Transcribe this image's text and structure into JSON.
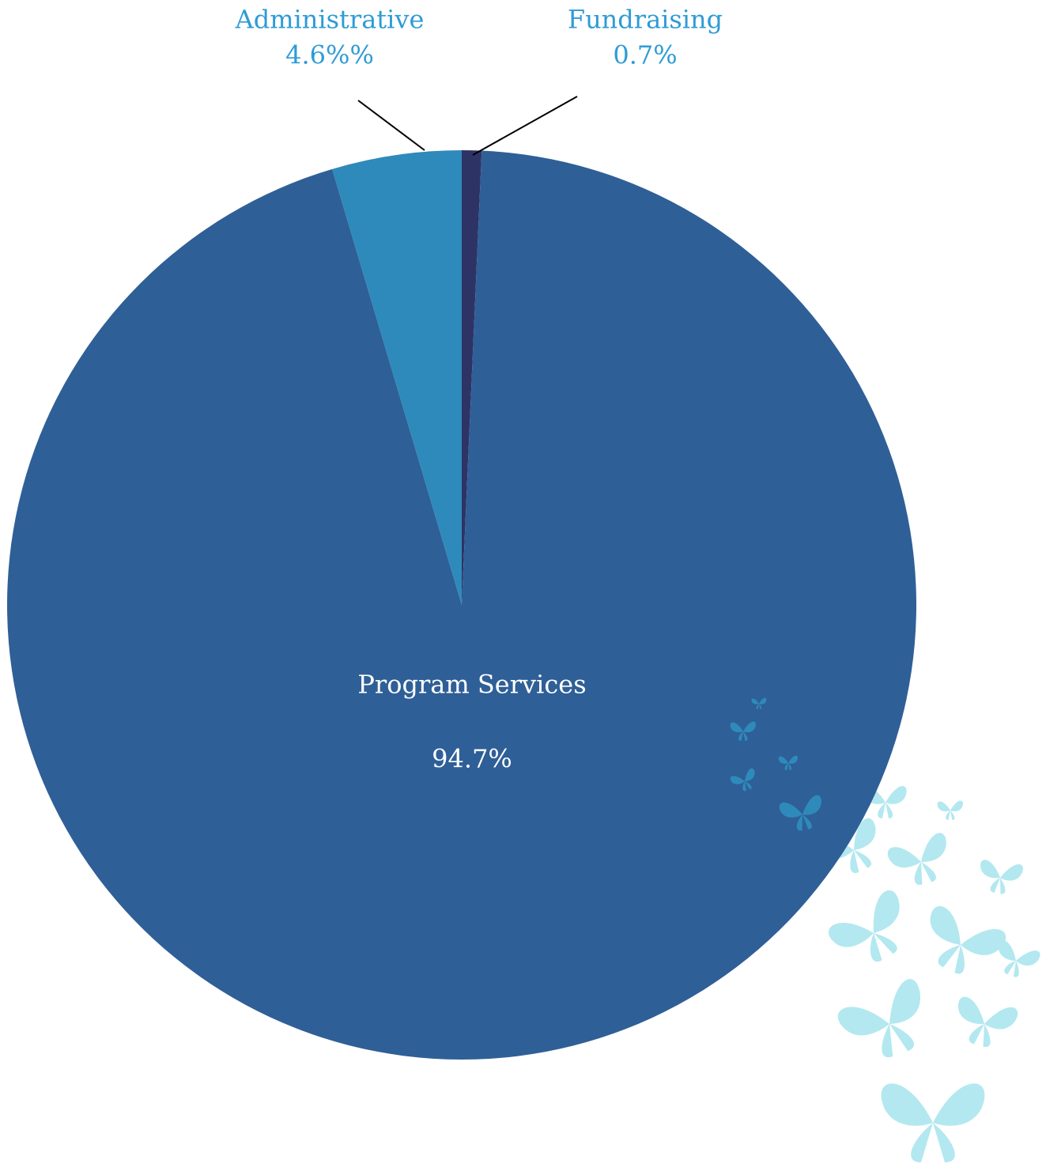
{
  "chart_data": {
    "type": "pie",
    "categories": [
      "Fundraising",
      "Program Services",
      "Administrative"
    ],
    "values": [
      0.7,
      94.7,
      4.6
    ],
    "value_labels": [
      "0.7%",
      "94.7%",
      "4.6%%"
    ],
    "colors": [
      "#2e3366",
      "#2f5f97",
      "#2e8aba"
    ]
  }
}
